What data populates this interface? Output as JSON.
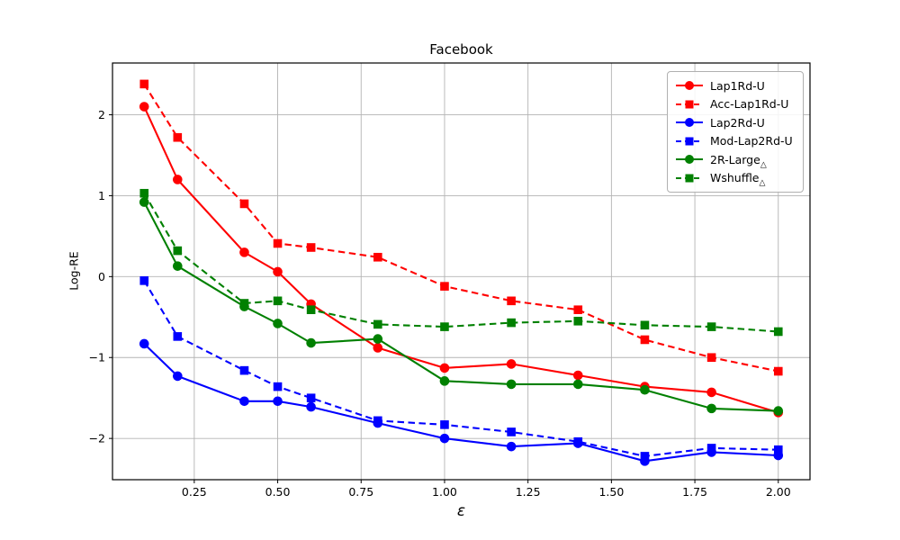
{
  "figure": {
    "title": "Facebook"
  },
  "chart_data": {
    "type": "line",
    "title": "Facebook",
    "xlabel": "ε",
    "ylabel": "Log-RE",
    "grid": true,
    "legend_position": "upper-right",
    "xlim": [
      0.005,
      2.095
    ],
    "ylim": [
      -2.51,
      2.64
    ],
    "xticks": [
      0.25,
      0.5,
      0.75,
      1.0,
      1.25,
      1.5,
      1.75,
      2.0
    ],
    "xtick_labels": [
      "0.25",
      "0.50",
      "0.75",
      "1.00",
      "1.25",
      "1.50",
      "1.75",
      "2.00"
    ],
    "yticks": [
      -2,
      -1,
      0,
      1,
      2
    ],
    "ytick_labels": [
      "−2",
      "−1",
      "0",
      "1",
      "2"
    ],
    "x": [
      0.1,
      0.2,
      0.4,
      0.5,
      0.6,
      0.8,
      1.0,
      1.2,
      1.4,
      1.6,
      1.8,
      2.0
    ],
    "colors": {
      "red": "#ff0000",
      "blue": "#0000ff",
      "green": "#008000",
      "grid": "#b3b3b3",
      "axis": "#000000"
    },
    "series": [
      {
        "name": "Lap1Rd-U",
        "label": "Lap1Rd-U",
        "label_sub": "",
        "color": "#ff0000",
        "style": "solid",
        "marker": "circle",
        "values": [
          2.1,
          1.2,
          0.3,
          0.06,
          -0.34,
          -0.88,
          -1.13,
          -1.08,
          -1.22,
          -1.36,
          -1.43,
          -1.68
        ]
      },
      {
        "name": "Acc-Lap1Rd-U",
        "label": "Acc-Lap1Rd-U",
        "label_sub": "",
        "color": "#ff0000",
        "style": "dashed",
        "marker": "square",
        "values": [
          2.38,
          1.72,
          0.9,
          0.41,
          0.36,
          0.24,
          -0.12,
          -0.3,
          -0.41,
          -0.78,
          -1.0,
          -1.17
        ]
      },
      {
        "name": "Lap2Rd-U",
        "label": "Lap2Rd-U",
        "label_sub": "",
        "color": "#0000ff",
        "style": "solid",
        "marker": "circle",
        "values": [
          -0.83,
          -1.23,
          -1.54,
          -1.54,
          -1.61,
          -1.81,
          -2.0,
          -2.1,
          -2.06,
          -2.28,
          -2.17,
          -2.21
        ]
      },
      {
        "name": "Mod-Lap2Rd-U",
        "label": "Mod-Lap2Rd-U",
        "label_sub": "",
        "color": "#0000ff",
        "style": "dashed",
        "marker": "square",
        "values": [
          -0.05,
          -0.74,
          -1.16,
          -1.36,
          -1.5,
          -1.78,
          -1.83,
          -1.92,
          -2.04,
          -2.22,
          -2.12,
          -2.14
        ]
      },
      {
        "name": "2R-Large",
        "label": "2R-Large",
        "label_sub": "△",
        "color": "#008000",
        "style": "solid",
        "marker": "circle",
        "values": [
          0.92,
          0.13,
          -0.37,
          -0.58,
          -0.82,
          -0.77,
          -1.29,
          -1.33,
          -1.33,
          -1.4,
          -1.63,
          -1.66
        ]
      },
      {
        "name": "Wshuffle",
        "label": "Wshuffle",
        "label_sub": "△",
        "color": "#008000",
        "style": "dashed",
        "marker": "square",
        "values": [
          1.03,
          0.32,
          -0.33,
          -0.3,
          -0.41,
          -0.59,
          -0.62,
          -0.57,
          -0.55,
          -0.6,
          -0.62,
          -0.68
        ]
      }
    ]
  }
}
